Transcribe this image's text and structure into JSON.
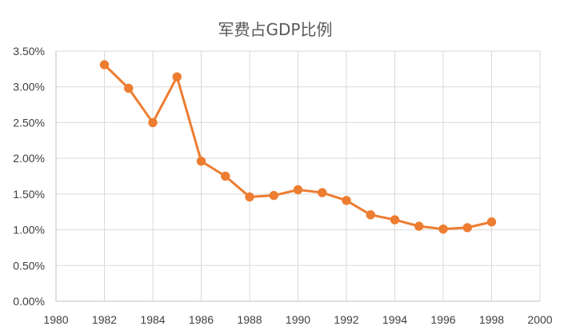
{
  "chart_data": {
    "type": "line",
    "title": "军费占GDP比例",
    "xlabel": "",
    "ylabel": "",
    "xlim": [
      1980,
      2000
    ],
    "ylim": [
      0,
      3.5
    ],
    "x_ticks": [
      "1980",
      "1982",
      "1984",
      "1986",
      "1988",
      "1990",
      "1992",
      "1994",
      "1996",
      "1998",
      "2000"
    ],
    "y_ticks": [
      "0.00%",
      "0.50%",
      "1.00%",
      "1.50%",
      "2.00%",
      "2.50%",
      "3.00%",
      "3.50%"
    ],
    "y_unit": "%",
    "grid": true,
    "legend": "none",
    "color": "#ED7D31",
    "series": [
      {
        "x": [
          1982,
          1983,
          1984,
          1985,
          1986,
          1987,
          1988,
          1989,
          1990,
          1991,
          1992,
          1993,
          1994,
          1995,
          1996,
          1997,
          1998
        ],
        "values": [
          3.31,
          2.98,
          2.5,
          3.14,
          1.96,
          1.75,
          1.46,
          1.48,
          1.56,
          1.52,
          1.41,
          1.21,
          1.14,
          1.05,
          1.01,
          1.03,
          1.11
        ]
      }
    ]
  }
}
